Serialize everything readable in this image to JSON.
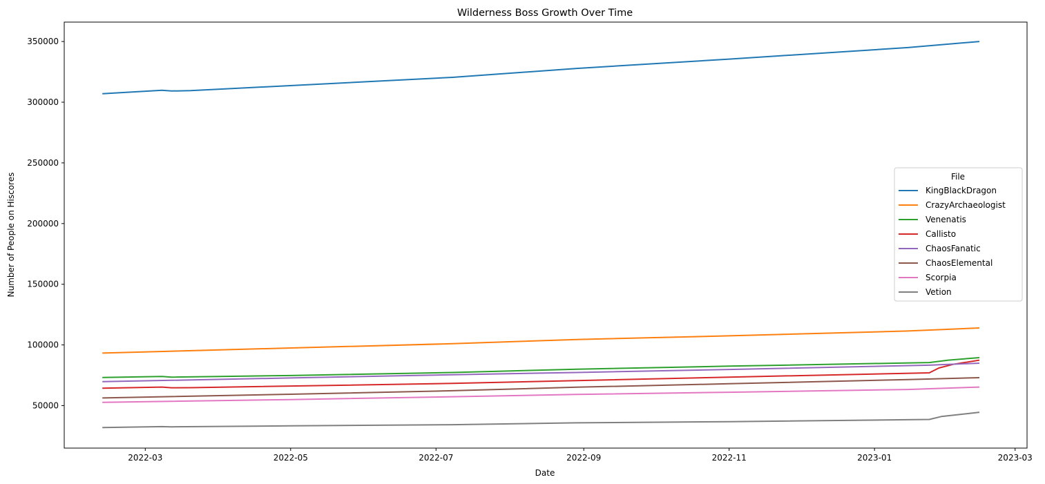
{
  "chart_data": {
    "type": "line",
    "title": "Wilderness Boss Growth Over Time",
    "xlabel": "Date",
    "ylabel": "Number of People on Hiscores",
    "x_range": [
      "2022-01-26",
      "2023-03-06"
    ],
    "ylim": [
      15000,
      366000
    ],
    "x_ticks": [
      {
        "date": "2022-03-01",
        "label": "2022-03"
      },
      {
        "date": "2022-05-01",
        "label": "2022-05"
      },
      {
        "date": "2022-07-01",
        "label": "2022-07"
      },
      {
        "date": "2022-09-01",
        "label": "2022-09"
      },
      {
        "date": "2022-11-01",
        "label": "2022-11"
      },
      {
        "date": "2023-01-01",
        "label": "2023-01"
      },
      {
        "date": "2023-03-01",
        "label": "2023-03"
      }
    ],
    "y_ticks": [
      50000,
      100000,
      150000,
      200000,
      250000,
      300000,
      350000
    ],
    "legend_title": "File",
    "legend_position": "center-right",
    "series": [
      {
        "name": "KingBlackDragon",
        "color": "#1f77b4",
        "points": [
          [
            "2022-02-11",
            307000
          ],
          [
            "2022-03-08",
            309800
          ],
          [
            "2022-03-12",
            309200
          ],
          [
            "2022-03-20",
            309500
          ],
          [
            "2022-07-08",
            320500
          ],
          [
            "2022-08-29",
            327800
          ],
          [
            "2022-11-01",
            335500
          ],
          [
            "2023-01-15",
            345000
          ],
          [
            "2023-02-14",
            350000
          ]
        ]
      },
      {
        "name": "CrazyArchaeologist",
        "color": "#ff7f0e",
        "points": [
          [
            "2022-02-11",
            93300
          ],
          [
            "2022-05-01",
            97500
          ],
          [
            "2022-07-08",
            101000
          ],
          [
            "2022-08-29",
            104500
          ],
          [
            "2022-11-01",
            107500
          ],
          [
            "2023-01-15",
            111500
          ],
          [
            "2023-02-14",
            114000
          ]
        ]
      },
      {
        "name": "Venenatis",
        "color": "#2ca02c",
        "points": [
          [
            "2022-02-11",
            73200
          ],
          [
            "2022-03-08",
            74000
          ],
          [
            "2022-03-12",
            73500
          ],
          [
            "2022-05-01",
            74800
          ],
          [
            "2022-07-08",
            77300
          ],
          [
            "2022-08-29",
            80000
          ],
          [
            "2022-11-01",
            82500
          ],
          [
            "2023-01-24",
            85500
          ],
          [
            "2023-02-01",
            87500
          ],
          [
            "2023-02-14",
            89500
          ]
        ]
      },
      {
        "name": "Callisto",
        "color": "#d62728",
        "points": [
          [
            "2022-02-11",
            64300
          ],
          [
            "2022-03-08",
            65300
          ],
          [
            "2022-03-12",
            64700
          ],
          [
            "2022-03-20",
            64800
          ],
          [
            "2022-07-08",
            68300
          ],
          [
            "2022-08-29",
            70600
          ],
          [
            "2022-11-01",
            73500
          ],
          [
            "2023-01-24",
            77000
          ],
          [
            "2023-01-28",
            81000
          ],
          [
            "2023-02-03",
            84000
          ],
          [
            "2023-02-14",
            87500
          ]
        ]
      },
      {
        "name": "ChaosFanatic",
        "color": "#9467bd",
        "points": [
          [
            "2022-02-11",
            69700
          ],
          [
            "2022-05-01",
            72800
          ],
          [
            "2022-07-08",
            75500
          ],
          [
            "2022-08-29",
            77300
          ],
          [
            "2022-11-01",
            79800
          ],
          [
            "2023-01-24",
            83300
          ],
          [
            "2023-02-14",
            85000
          ]
        ]
      },
      {
        "name": "ChaosElemental",
        "color": "#8c564b",
        "points": [
          [
            "2022-02-11",
            56300
          ],
          [
            "2022-05-01",
            59400
          ],
          [
            "2022-07-08",
            62300
          ],
          [
            "2022-08-29",
            65200
          ],
          [
            "2022-11-01",
            68000
          ],
          [
            "2023-01-15",
            71500
          ],
          [
            "2023-02-14",
            73000
          ]
        ]
      },
      {
        "name": "Scorpia",
        "color": "#e377c2",
        "points": [
          [
            "2022-02-11",
            52700
          ],
          [
            "2022-05-01",
            55000
          ],
          [
            "2022-07-08",
            57300
          ],
          [
            "2022-08-29",
            59200
          ],
          [
            "2022-11-01",
            61000
          ],
          [
            "2023-01-15",
            63300
          ],
          [
            "2023-02-14",
            65300
          ]
        ]
      },
      {
        "name": "Vetion",
        "color": "#7f7f7f",
        "points": [
          [
            "2022-02-11",
            31900
          ],
          [
            "2022-03-08",
            32700
          ],
          [
            "2022-03-12",
            32500
          ],
          [
            "2022-05-01",
            33300
          ],
          [
            "2022-07-08",
            34300
          ],
          [
            "2022-08-29",
            35800
          ],
          [
            "2022-11-01",
            36800
          ],
          [
            "2023-01-24",
            38600
          ],
          [
            "2023-01-29",
            41000
          ],
          [
            "2023-02-14",
            44500
          ]
        ]
      }
    ]
  }
}
